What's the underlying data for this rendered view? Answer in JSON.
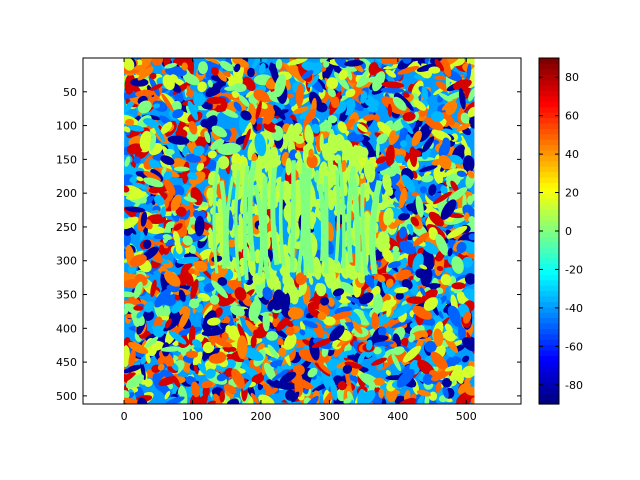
{
  "chart_data": {
    "type": "heatmap",
    "title": "",
    "xlabel": "",
    "ylabel": "",
    "xlim": [
      -60,
      580
    ],
    "ylim": [
      512,
      0
    ],
    "image_extent": {
      "x": [
        0,
        512
      ],
      "y": [
        0,
        512
      ]
    },
    "x_ticks": [
      0,
      100,
      200,
      300,
      400,
      500
    ],
    "y_ticks": [
      50,
      100,
      150,
      200,
      250,
      300,
      350,
      400,
      450,
      500
    ],
    "colormap": "jet",
    "colorbar": {
      "min": -90,
      "max": 90,
      "ticks": [
        -80,
        -60,
        -40,
        -20,
        0,
        20,
        40,
        60,
        80
      ]
    },
    "grid": false,
    "colors": {
      "background": "#ffffff",
      "axes": "#000000",
      "dominant_center_value_color": "#80ff80"
    }
  }
}
